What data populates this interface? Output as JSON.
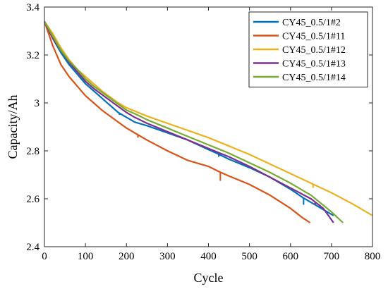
{
  "chart_data": {
    "type": "line",
    "title": "",
    "xlabel": "Cycle",
    "ylabel": "Capacity/Ah",
    "xlim": [
      0,
      800
    ],
    "ylim": [
      2.4,
      3.4
    ],
    "xticks": [
      0,
      100,
      200,
      300,
      400,
      500,
      600,
      700,
      800
    ],
    "xtick_labels": [
      "0",
      "100",
      "200",
      "300",
      "400",
      "500",
      "600",
      "700",
      "800"
    ],
    "yticks": [
      2.4,
      2.6,
      2.8,
      3.0,
      3.2,
      3.4
    ],
    "ytick_labels": [
      "2.4",
      "2.6",
      "2.8",
      "3",
      "3.2",
      "3.4"
    ],
    "grid": false,
    "legend_position": "top-right",
    "series": [
      {
        "name": "CY45_0.5/1#2",
        "color": "#0072BD",
        "points": [
          [
            0,
            3.34
          ],
          [
            20,
            3.27
          ],
          [
            40,
            3.21
          ],
          [
            60,
            3.16
          ],
          [
            80,
            3.12
          ],
          [
            100,
            3.08
          ],
          [
            120,
            3.05
          ],
          [
            140,
            3.02
          ],
          [
            160,
            2.99
          ],
          [
            180,
            2.96
          ],
          [
            200,
            2.94
          ],
          [
            220,
            2.92
          ],
          [
            250,
            2.905
          ],
          [
            300,
            2.875
          ],
          [
            350,
            2.845
          ],
          [
            400,
            2.805
          ],
          [
            420,
            2.79
          ],
          [
            450,
            2.765
          ],
          [
            500,
            2.73
          ],
          [
            550,
            2.69
          ],
          [
            600,
            2.64
          ],
          [
            630,
            2.605
          ],
          [
            650,
            2.585
          ],
          [
            680,
            2.555
          ],
          [
            705,
            2.53
          ]
        ],
        "dips": [
          [
            183,
            2.95
          ],
          [
            425,
            2.775
          ],
          [
            632,
            2.575
          ]
        ]
      },
      {
        "name": "CY45_0.5/1#11",
        "color": "#D95319",
        "points": [
          [
            0,
            3.34
          ],
          [
            20,
            3.24
          ],
          [
            40,
            3.16
          ],
          [
            60,
            3.11
          ],
          [
            80,
            3.07
          ],
          [
            100,
            3.03
          ],
          [
            120,
            3.0
          ],
          [
            140,
            2.97
          ],
          [
            160,
            2.945
          ],
          [
            180,
            2.92
          ],
          [
            200,
            2.895
          ],
          [
            220,
            2.875
          ],
          [
            250,
            2.845
          ],
          [
            300,
            2.8
          ],
          [
            350,
            2.76
          ],
          [
            400,
            2.735
          ],
          [
            430,
            2.71
          ],
          [
            450,
            2.695
          ],
          [
            500,
            2.66
          ],
          [
            550,
            2.615
          ],
          [
            600,
            2.56
          ],
          [
            630,
            2.52
          ],
          [
            648,
            2.5
          ]
        ],
        "dips": [
          [
            228,
            2.855
          ],
          [
            429,
            2.675
          ]
        ]
      },
      {
        "name": "CY45_0.5/1#12",
        "color": "#EDB120",
        "points": [
          [
            0,
            3.34
          ],
          [
            20,
            3.29
          ],
          [
            40,
            3.23
          ],
          [
            60,
            3.18
          ],
          [
            80,
            3.14
          ],
          [
            100,
            3.11
          ],
          [
            120,
            3.08
          ],
          [
            140,
            3.05
          ],
          [
            160,
            3.025
          ],
          [
            180,
            3.0
          ],
          [
            200,
            2.98
          ],
          [
            250,
            2.945
          ],
          [
            300,
            2.915
          ],
          [
            350,
            2.885
          ],
          [
            400,
            2.855
          ],
          [
            450,
            2.82
          ],
          [
            500,
            2.785
          ],
          [
            550,
            2.745
          ],
          [
            600,
            2.705
          ],
          [
            650,
            2.665
          ],
          [
            700,
            2.625
          ],
          [
            750,
            2.58
          ],
          [
            800,
            2.53
          ]
        ],
        "dips": [
          [
            655,
            2.645
          ]
        ]
      },
      {
        "name": "CY45_0.5/1#13",
        "color": "#7E2F8E",
        "points": [
          [
            0,
            3.34
          ],
          [
            20,
            3.27
          ],
          [
            40,
            3.22
          ],
          [
            60,
            3.17
          ],
          [
            80,
            3.13
          ],
          [
            100,
            3.09
          ],
          [
            120,
            3.06
          ],
          [
            140,
            3.035
          ],
          [
            160,
            3.01
          ],
          [
            180,
            2.985
          ],
          [
            200,
            2.96
          ],
          [
            220,
            2.94
          ],
          [
            250,
            2.915
          ],
          [
            300,
            2.88
          ],
          [
            350,
            2.845
          ],
          [
            400,
            2.81
          ],
          [
            450,
            2.775
          ],
          [
            500,
            2.735
          ],
          [
            550,
            2.69
          ],
          [
            600,
            2.645
          ],
          [
            650,
            2.6
          ],
          [
            680,
            2.56
          ],
          [
            705,
            2.5
          ]
        ],
        "dips": [
          [
            660,
            2.575
          ]
        ]
      },
      {
        "name": "CY45_0.5/1#14",
        "color": "#77AC30",
        "points": [
          [
            0,
            3.34
          ],
          [
            20,
            3.28
          ],
          [
            40,
            3.22
          ],
          [
            60,
            3.175
          ],
          [
            80,
            3.14
          ],
          [
            100,
            3.1
          ],
          [
            120,
            3.07
          ],
          [
            140,
            3.045
          ],
          [
            160,
            3.02
          ],
          [
            180,
            2.995
          ],
          [
            200,
            2.97
          ],
          [
            220,
            2.955
          ],
          [
            250,
            2.93
          ],
          [
            300,
            2.895
          ],
          [
            350,
            2.86
          ],
          [
            400,
            2.825
          ],
          [
            450,
            2.79
          ],
          [
            500,
            2.75
          ],
          [
            550,
            2.71
          ],
          [
            600,
            2.665
          ],
          [
            650,
            2.615
          ],
          [
            700,
            2.545
          ],
          [
            728,
            2.5
          ]
        ],
        "dips": []
      }
    ]
  }
}
